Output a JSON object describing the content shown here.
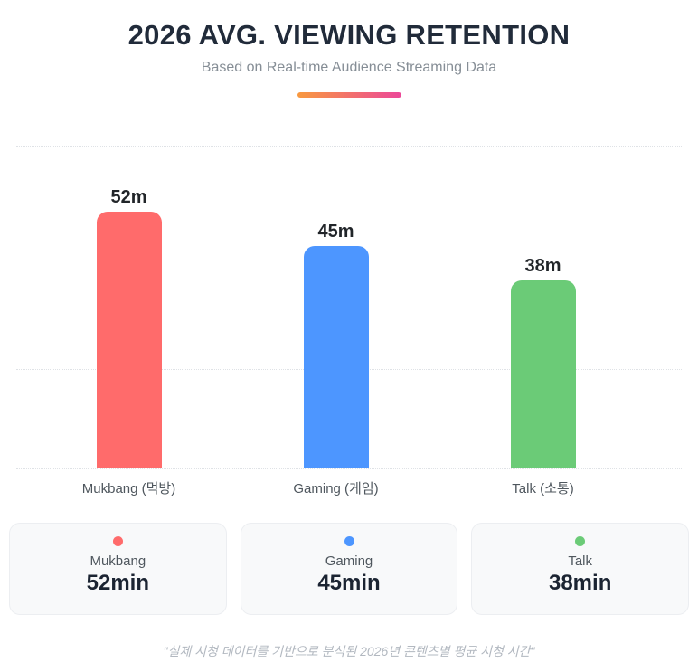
{
  "header": {
    "title": "2026 AVG. VIEWING RETENTION",
    "subtitle": "Based on Real-time Audience Streaming Data"
  },
  "chart_data": {
    "type": "bar",
    "title": "2026 AVG. VIEWING RETENTION",
    "subtitle": "Based on Real-time Audience Streaming Data",
    "categories": [
      "Mukbang (먹방)",
      "Gaming (게임)",
      "Talk (소통)"
    ],
    "values": [
      52,
      45,
      38
    ],
    "value_labels": [
      "52m",
      "45m",
      "38m"
    ],
    "unit": "minutes",
    "colors": [
      "#FF6B6B",
      "#4D96FF",
      "#6BCB77"
    ],
    "ylim": [
      0,
      65
    ],
    "gridlines": "horizontal dotted at 20, 40 and 65 minutes plus baseline",
    "legend_position": "none"
  },
  "cards": [
    {
      "name": "Mukbang",
      "value": "52min",
      "color": "#FF6B6B"
    },
    {
      "name": "Gaming",
      "value": "45min",
      "color": "#4D96FF"
    },
    {
      "name": "Talk",
      "value": "38min",
      "color": "#6BCB77"
    }
  ],
  "footer": {
    "quote": "\"실제 시청 데이터를 기반으로 분석된 2026년 콘텐츠별 평균 시청 시간\""
  },
  "accent": {
    "divider_gradient_start": "#F8993F",
    "divider_gradient_end": "#EC4899"
  }
}
